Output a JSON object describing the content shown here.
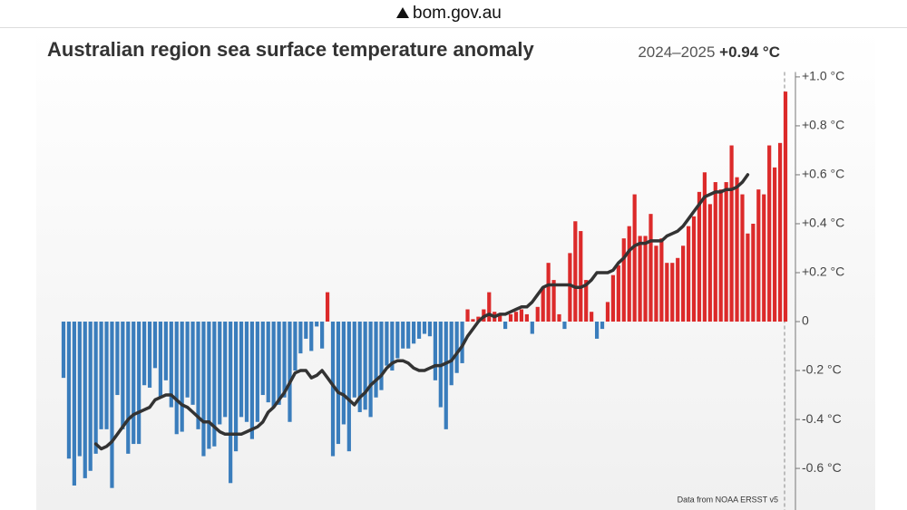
{
  "browser": {
    "url": "bom.gov.au"
  },
  "chart_data": {
    "type": "bar",
    "title": "Australian region sea surface temperature anomaly",
    "period": "2024–2025",
    "latest_label": "+0.94 °C",
    "source": "Data from NOAA ERSST v5",
    "color_positive": "#dc2a2a",
    "color_negative": "#3a7dbc",
    "ylim": [
      -0.77,
      1.02
    ],
    "yticks": [
      {
        "value": 1.0,
        "label": "+1.0 °C"
      },
      {
        "value": 0.8,
        "label": "+0.8 °C"
      },
      {
        "value": 0.6,
        "label": "+0.6 °C"
      },
      {
        "value": 0.4,
        "label": "+0.4 °C"
      },
      {
        "value": 0.2,
        "label": "+0.2 °C"
      },
      0,
      {
        "value": -0.2,
        "label": "-0.2 °C"
      },
      {
        "value": -0.4,
        "label": "-0.4 °C"
      },
      {
        "value": -0.6,
        "label": "-0.6 °C"
      }
    ],
    "values": [
      -0.23,
      -0.56,
      -0.67,
      -0.55,
      -0.64,
      -0.61,
      -0.54,
      -0.44,
      -0.44,
      -0.68,
      -0.3,
      -0.44,
      -0.54,
      -0.5,
      -0.5,
      -0.26,
      -0.27,
      -0.19,
      -0.31,
      -0.24,
      -0.35,
      -0.46,
      -0.45,
      -0.31,
      -0.34,
      -0.44,
      -0.55,
      -0.52,
      -0.51,
      -0.42,
      -0.39,
      -0.66,
      -0.53,
      -0.39,
      -0.41,
      -0.48,
      -0.41,
      -0.3,
      -0.33,
      -0.35,
      -0.34,
      -0.31,
      -0.41,
      -0.2,
      -0.13,
      -0.07,
      -0.12,
      -0.02,
      -0.11,
      0.12,
      -0.55,
      -0.5,
      -0.42,
      -0.53,
      -0.31,
      -0.37,
      -0.36,
      -0.39,
      -0.31,
      -0.28,
      -0.18,
      -0.2,
      -0.15,
      -0.11,
      -0.11,
      -0.09,
      -0.07,
      -0.05,
      -0.06,
      -0.24,
      -0.35,
      -0.44,
      -0.26,
      -0.21,
      -0.17,
      0.05,
      0.01,
      0.02,
      0.05,
      0.12,
      0.04,
      0.03,
      -0.03,
      0.03,
      0.04,
      0.05,
      0.03,
      -0.05,
      0.06,
      0.14,
      0.24,
      0.17,
      0.03,
      -0.03,
      0.28,
      0.41,
      0.37,
      0.17,
      0.04,
      -0.07,
      -0.03,
      0.08,
      0.19,
      0.23,
      0.34,
      0.39,
      0.52,
      0.35,
      0.35,
      0.44,
      0.31,
      0.34,
      0.24,
      0.24,
      0.26,
      0.31,
      0.39,
      0.43,
      0.53,
      0.61,
      0.48,
      0.57,
      0.54,
      0.57,
      0.72,
      0.59,
      0.52,
      0.36,
      0.4,
      0.54,
      0.52,
      0.72,
      0.63,
      0.73,
      0.94
    ],
    "trend": {
      "color": "#333333",
      "values": [
        null,
        null,
        null,
        null,
        null,
        null,
        -0.5,
        -0.52,
        -0.51,
        -0.49,
        -0.46,
        -0.43,
        -0.4,
        -0.38,
        -0.37,
        -0.36,
        -0.35,
        -0.32,
        -0.31,
        -0.3,
        -0.3,
        -0.32,
        -0.34,
        -0.35,
        -0.37,
        -0.39,
        -0.41,
        -0.41,
        -0.43,
        -0.45,
        -0.46,
        -0.46,
        -0.46,
        -0.46,
        -0.45,
        -0.44,
        -0.43,
        -0.41,
        -0.37,
        -0.35,
        -0.32,
        -0.29,
        -0.25,
        -0.21,
        -0.2,
        -0.2,
        -0.23,
        -0.22,
        -0.2,
        -0.23,
        -0.26,
        -0.29,
        -0.3,
        -0.32,
        -0.34,
        -0.31,
        -0.29,
        -0.26,
        -0.24,
        -0.22,
        -0.19,
        -0.17,
        -0.16,
        -0.16,
        -0.17,
        -0.19,
        -0.2,
        -0.2,
        -0.19,
        -0.18,
        -0.18,
        -0.17,
        -0.16,
        -0.13,
        -0.1,
        -0.06,
        -0.03,
        0.0,
        0.02,
        0.03,
        0.02,
        0.03,
        0.03,
        0.04,
        0.05,
        0.06,
        0.06,
        0.08,
        0.11,
        0.14,
        0.15,
        0.15,
        0.15,
        0.15,
        0.15,
        0.14,
        0.14,
        0.15,
        0.17,
        0.2,
        0.2,
        0.2,
        0.21,
        0.24,
        0.26,
        0.29,
        0.31,
        0.32,
        0.32,
        0.33,
        0.33,
        0.33,
        0.35,
        0.36,
        0.37,
        0.39,
        0.42,
        0.45,
        0.48,
        0.51,
        0.52,
        0.53,
        0.53,
        0.54,
        0.54,
        0.55,
        0.57,
        0.6,
        null,
        null,
        null,
        null,
        null,
        null,
        null
      ]
    }
  }
}
